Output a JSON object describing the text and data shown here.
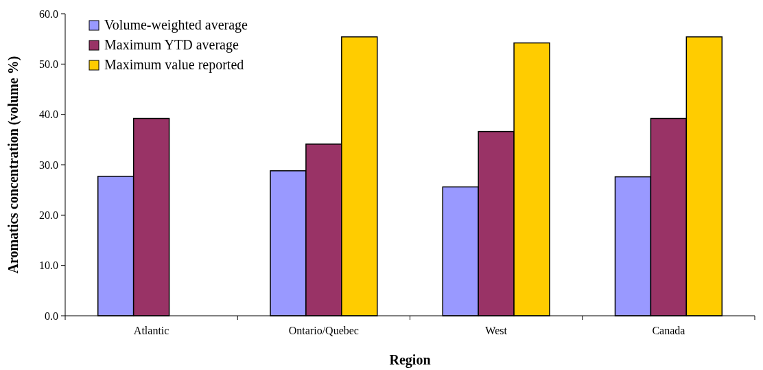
{
  "chart_data": {
    "type": "bar",
    "xlabel": "Region",
    "ylabel": "Aromatics concentration (volume %)",
    "categories": [
      "Atlantic",
      "Ontario/Quebec",
      "West",
      "Canada"
    ],
    "series": [
      {
        "name": "Volume-weighted average",
        "color": "#9999ff",
        "values": [
          27.7,
          28.8,
          25.6,
          27.6
        ]
      },
      {
        "name": "Maximum YTD average",
        "color": "#993366",
        "values": [
          39.2,
          34.1,
          36.6,
          39.2
        ]
      },
      {
        "name": "Maximum value reported",
        "color": "#ffcc00",
        "values": [
          null,
          55.4,
          54.2,
          55.4
        ]
      }
    ],
    "ylim": [
      0,
      60
    ],
    "yticks": [
      {
        "value": 0,
        "label": "0.0"
      },
      {
        "value": 10,
        "label": "10.0"
      },
      {
        "value": 20,
        "label": "20.0"
      },
      {
        "value": 30,
        "label": "30.0"
      },
      {
        "value": 40,
        "label": "40.0"
      },
      {
        "value": 50,
        "label": "50.0"
      },
      {
        "value": 60,
        "label": "60.0"
      }
    ],
    "legend": "top left",
    "grid": false
  }
}
